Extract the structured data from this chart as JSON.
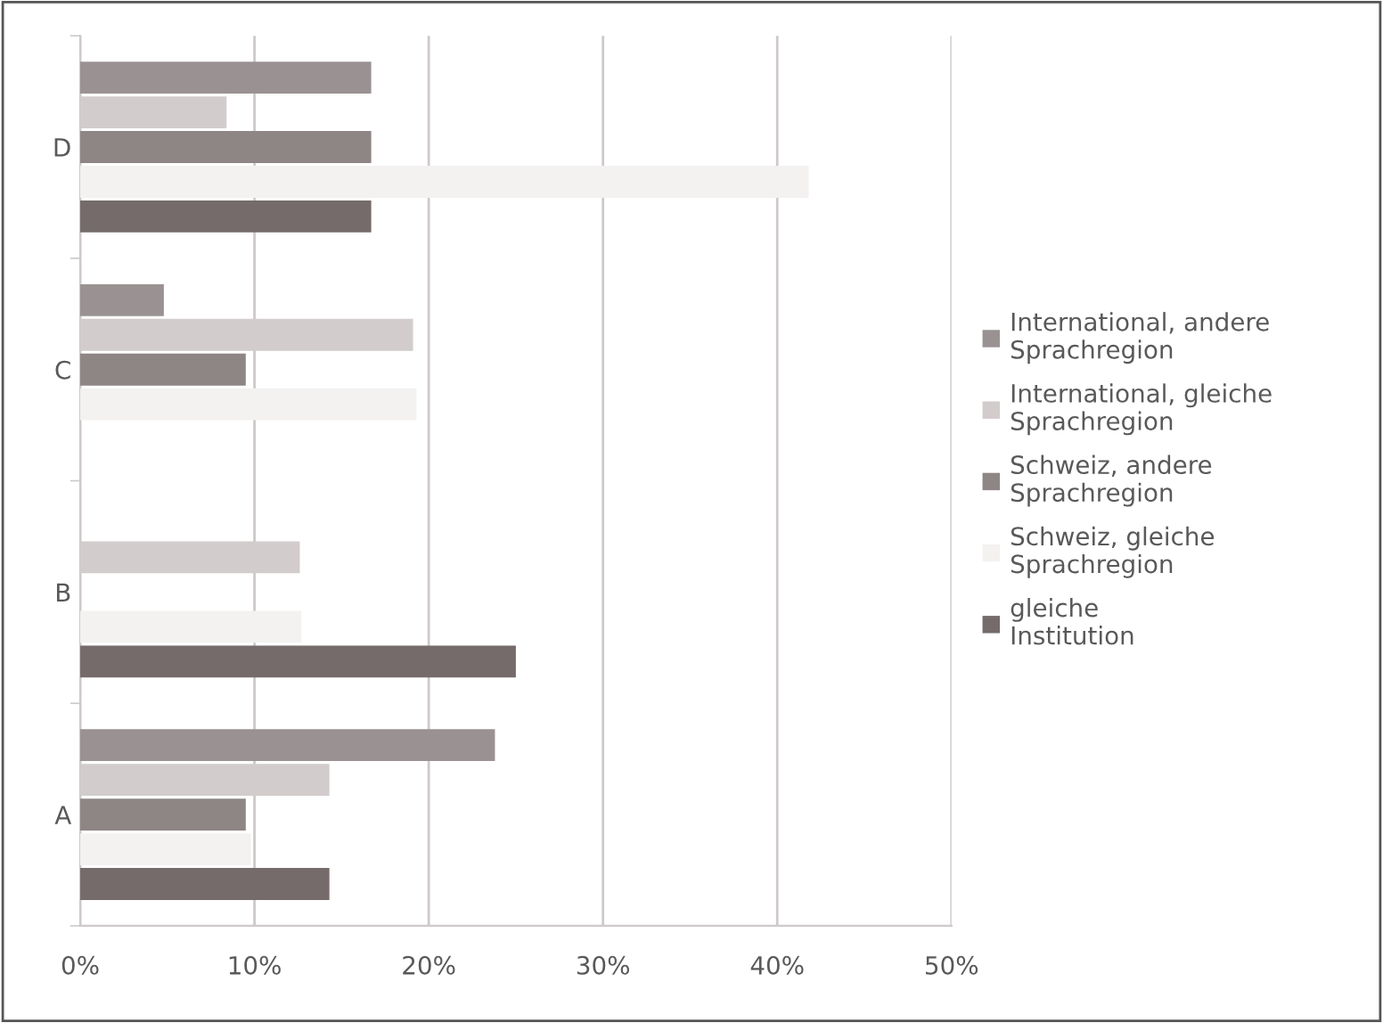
{
  "chart_data": {
    "type": "bar",
    "orientation": "horizontal",
    "categories": [
      "D",
      "C",
      "B",
      "A"
    ],
    "series": [
      {
        "name": "International, andere Sprachregion",
        "color": "#9a9292",
        "values": [
          16.7,
          4.8,
          null,
          23.8
        ]
      },
      {
        "name": "International, gleiche Sprachregion",
        "color": "#d2cccc",
        "values": [
          8.4,
          19.1,
          12.6,
          14.3
        ]
      },
      {
        "name": "Schweiz, andere Sprachregion",
        "color": "#8e8585",
        "values": [
          16.7,
          9.5,
          null,
          9.5
        ]
      },
      {
        "name": "Schweiz, gleiche Sprachregion",
        "color": "#f4f1f1",
        "values": [
          41.8,
          19.3,
          12.7,
          9.8
        ]
      },
      {
        "name": "gleiche Institution",
        "color": "#756b6b",
        "values": [
          16.7,
          null,
          25,
          14.3
        ]
      }
    ],
    "xlim": [
      0,
      50
    ],
    "xticks": [
      {
        "value": 0,
        "label": "0%"
      },
      {
        "value": 10,
        "label": "10%"
      },
      {
        "value": 20,
        "label": "20%"
      },
      {
        "value": 30,
        "label": "30%"
      },
      {
        "value": 40,
        "label": "40%"
      },
      {
        "value": 50,
        "label": "50%"
      }
    ],
    "grid": "x",
    "legend": "right"
  }
}
